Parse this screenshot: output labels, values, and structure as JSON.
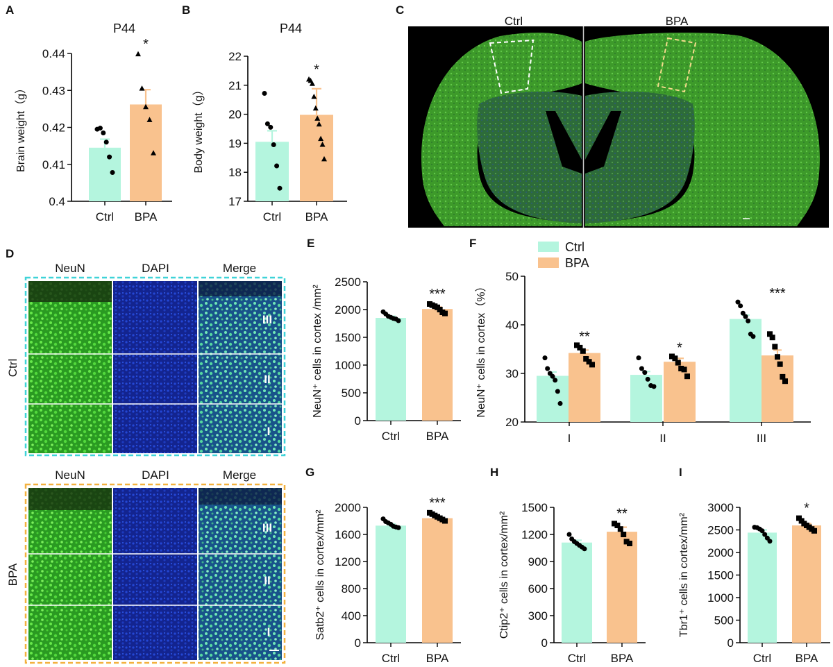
{
  "colors": {
    "ctrl": "#b4f5de",
    "bpa": "#f9c28e",
    "ctrl_box": "#3fd3d8",
    "bpa_box": "#f3b13f",
    "neun": "#3fc62e",
    "dapi": "#1b3fc4"
  },
  "panel_letters": [
    "A",
    "B",
    "C",
    "D",
    "E",
    "F",
    "G",
    "H",
    "I"
  ],
  "micrographs": {
    "C": {
      "labels": [
        "Ctrl",
        "BPA"
      ]
    },
    "D": {
      "channels": [
        "NeuN",
        "DAPI",
        "Merge"
      ],
      "rows": [
        "Ctrl",
        "BPA"
      ],
      "layers": [
        "III",
        "II",
        "I"
      ]
    }
  },
  "chart_data": [
    {
      "id": "A",
      "type": "bar",
      "title": "P44",
      "categories": [
        "Ctrl",
        "BPA"
      ],
      "values": [
        0.4145,
        0.4262
      ],
      "errors": [
        0.0023,
        0.004
      ],
      "ylabel": "Brain weight（g）",
      "ylim": [
        0.4,
        0.44
      ],
      "yticks": [
        "0.4",
        "0.41",
        "0.42",
        "0.43",
        "0.44"
      ],
      "significance": [
        "",
        "*"
      ],
      "points": [
        [
          0.4195,
          0.4198,
          0.4185,
          0.416,
          0.412,
          0.4078
        ],
        [
          0.4398,
          0.4305,
          0.4255,
          0.422,
          0.413
        ]
      ],
      "markers": [
        "circle",
        "triangle"
      ]
    },
    {
      "id": "B",
      "type": "bar",
      "title": "P44",
      "categories": [
        "Ctrl",
        "BPA"
      ],
      "values": [
        19.05,
        19.98
      ],
      "errors": [
        0.38,
        0.9
      ],
      "ylabel": "Body weight（g）",
      "ylim": [
        17,
        22
      ],
      "yticks": [
        "17",
        "18",
        "19",
        "20",
        "21",
        "22"
      ],
      "significance": [
        "",
        "*"
      ],
      "points": [
        [
          20.72,
          19.67,
          19.55,
          18.95,
          18.22,
          17.45
        ],
        [
          21.2,
          21.15,
          21.05,
          20.6,
          20.2,
          19.85,
          19.65,
          19.15,
          18.95,
          18.45
        ]
      ],
      "markers": [
        "circle",
        "triangle"
      ]
    },
    {
      "id": "E",
      "type": "bar",
      "categories": [
        "Ctrl",
        "BPA"
      ],
      "values": [
        1850,
        2010
      ],
      "errors": [
        30,
        35
      ],
      "ylabel": "NeuN⁺ cells in cortex /mm²",
      "ylim": [
        0,
        2500
      ],
      "yticks": [
        "0",
        "500",
        "1000",
        "1500",
        "2000",
        "2500"
      ],
      "significance": [
        "",
        "***"
      ],
      "points": [
        [
          1960,
          1920,
          1880,
          1860,
          1840,
          1830,
          1800
        ],
        [
          2100,
          2080,
          2060,
          2040,
          2000,
          1950,
          1930
        ]
      ],
      "markers": [
        "circle",
        "square"
      ]
    },
    {
      "id": "F",
      "type": "bar",
      "categories": [
        "I",
        "II",
        "III"
      ],
      "legend": [
        "Ctrl",
        "BPA"
      ],
      "series": [
        {
          "name": "Ctrl",
          "values": [
            29.5,
            29.7,
            41.2
          ],
          "errors": [
            0.8,
            0.7,
            0.8
          ]
        },
        {
          "name": "BPA",
          "values": [
            34.2,
            32.4,
            33.7
          ],
          "errors": [
            0.6,
            0.7,
            1.1
          ]
        }
      ],
      "ylabel": "NeuN⁺ cells in cortex（%）",
      "ylim": [
        20,
        50
      ],
      "yticks": [
        "20",
        "30",
        "40",
        "50"
      ],
      "significance": [
        "**",
        "*",
        "***"
      ],
      "points": [
        [
          [
            33.2,
            31.0,
            30.0,
            29.4,
            28.6,
            26.3,
            23.8
          ],
          [
            35.8,
            35.3,
            34.6,
            33.0,
            32.4,
            31.8
          ]
        ],
        [
          [
            33.2,
            31.0,
            30.2,
            28.8,
            27.5,
            27.3
          ],
          [
            33.5,
            33.1,
            32.2,
            31.0,
            30.8,
            29.4
          ]
        ],
        [
          [
            44.7,
            43.9,
            42.4,
            41.7,
            40.8,
            38.1,
            37.6
          ],
          [
            38.1,
            37.4,
            35.5,
            33.4,
            31.9,
            29.3,
            28.4
          ]
        ]
      ],
      "markers": [
        "circle",
        "square"
      ]
    },
    {
      "id": "G",
      "type": "bar",
      "categories": [
        "Ctrl",
        "BPA"
      ],
      "values": [
        1730,
        1840
      ],
      "errors": [
        25,
        22
      ],
      "ylabel": "Satb2⁺ cells in cortex/mm²",
      "ylim": [
        0,
        2000
      ],
      "yticks": [
        "0",
        "400",
        "800",
        "1200",
        "1600",
        "2000"
      ],
      "significance": [
        "",
        "***"
      ],
      "points": [
        [
          1830,
          1790,
          1770,
          1750,
          1720,
          1710,
          1700
        ],
        [
          1920,
          1900,
          1880,
          1860,
          1840,
          1820,
          1800
        ]
      ],
      "markers": [
        "circle",
        "square"
      ]
    },
    {
      "id": "H",
      "type": "bar",
      "categories": [
        "Ctrl",
        "BPA"
      ],
      "values": [
        1110,
        1230
      ],
      "errors": [
        25,
        50
      ],
      "ylabel": "Ctip2⁺ cells in cortex/mm²",
      "ylim": [
        0,
        1500
      ],
      "yticks": [
        "0",
        "300",
        "600",
        "900",
        "1200",
        "1500"
      ],
      "significance": [
        "",
        "**"
      ],
      "points": [
        [
          1200,
          1150,
          1120,
          1100,
          1080,
          1060,
          1040
        ],
        [
          1320,
          1300,
          1260,
          1200,
          1120,
          1100
        ]
      ],
      "markers": [
        "circle",
        "square"
      ]
    },
    {
      "id": "I",
      "type": "bar",
      "categories": [
        "Ctrl",
        "BPA"
      ],
      "values": [
        2440,
        2600
      ],
      "errors": [
        60,
        40
      ],
      "ylabel": "Tbr1⁺ cells in cortex/mm²",
      "ylim": [
        0,
        3000
      ],
      "yticks": [
        "0",
        "500",
        "1000",
        "1500",
        "2000",
        "2500",
        "3000"
      ],
      "significance": [
        "",
        "*"
      ],
      "points": [
        [
          2560,
          2550,
          2520,
          2480,
          2400,
          2320,
          2250
        ],
        [
          2760,
          2700,
          2640,
          2600,
          2560,
          2520,
          2480
        ]
      ],
      "markers": [
        "circle",
        "square"
      ]
    }
  ]
}
